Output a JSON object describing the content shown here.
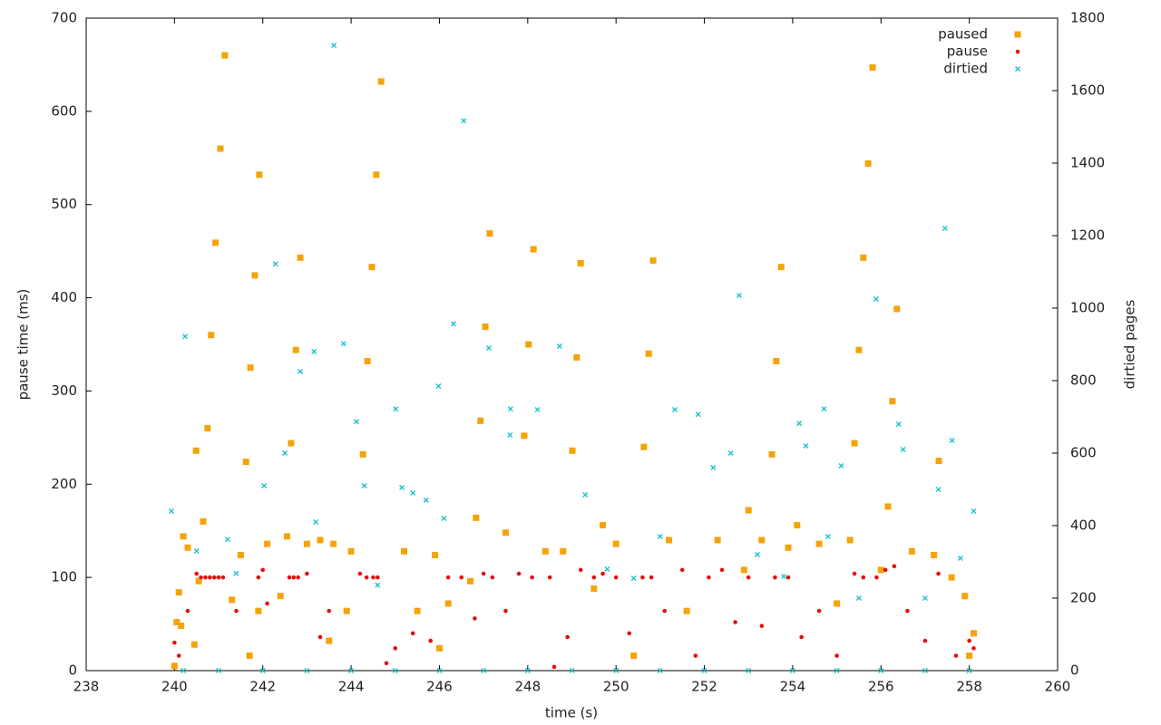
{
  "chart_data": {
    "type": "scatter",
    "xlabel": "time (s)",
    "ylabel": "pause time (ms)",
    "y2label": "dirtied pages",
    "xlim": [
      238,
      260
    ],
    "xticks": [
      238,
      240,
      242,
      244,
      246,
      248,
      250,
      252,
      254,
      256,
      258,
      260
    ],
    "ylim": [
      0,
      700
    ],
    "yticks": [
      0,
      100,
      200,
      300,
      400,
      500,
      600,
      700
    ],
    "y2lim": [
      0,
      1800
    ],
    "y2ticks": [
      0,
      200,
      400,
      600,
      800,
      1000,
      1200,
      1400,
      1600,
      1800
    ],
    "legend": "upper right",
    "series": [
      {
        "name": "paused",
        "color": "#f5a30a",
        "marker": "square",
        "x": [
          241.14,
          241.04,
          240.93,
          240.83,
          240.75,
          240.65,
          240.49,
          241.92,
          241.82,
          241.72,
          241.62,
          242.85,
          242.75,
          242.64,
          244.68,
          244.57,
          244.47,
          244.37,
          244.27,
          247.14,
          247.04,
          246.93,
          246.83,
          248.13,
          248.02,
          247.92,
          249.2,
          249.11,
          249.01,
          250.84,
          250.74,
          250.63,
          253.74,
          253.63,
          253.53,
          255.81,
          255.71,
          255.6,
          255.5,
          255.4,
          256.36,
          256.26,
          256.16,
          257.31,
          240.0,
          240.05,
          240.1,
          240.15,
          240.2,
          240.3,
          240.45,
          240.55,
          241.3,
          241.5,
          241.9,
          242.1,
          242.4,
          242.55,
          243.0,
          243.3,
          243.6,
          243.9,
          244.0,
          245.2,
          245.5,
          245.9,
          246.2,
          246.7,
          247.5,
          248.4,
          248.8,
          249.5,
          249.7,
          250.0,
          251.2,
          251.6,
          252.3,
          252.9,
          253.0,
          253.3,
          253.9,
          254.1,
          254.6,
          255.0,
          255.3,
          256.7,
          257.2,
          257.6,
          257.9,
          258.1,
          258.0,
          256.0,
          250.4,
          246.0,
          243.5,
          241.7
        ],
        "values": [
          660,
          560,
          459,
          360,
          260,
          160,
          236,
          532,
          424,
          325,
          224,
          443,
          344,
          244,
          632,
          532,
          433,
          332,
          232,
          469,
          369,
          268,
          164,
          452,
          350,
          252,
          437,
          336,
          236,
          440,
          340,
          240,
          433,
          332,
          232,
          647,
          544,
          443,
          344,
          244,
          388,
          289,
          176,
          225,
          5,
          52,
          84,
          48,
          144,
          132,
          28,
          96,
          76,
          124,
          64,
          136,
          80,
          144,
          136,
          140,
          136,
          64,
          128,
          128,
          64,
          124,
          72,
          96,
          148,
          128,
          128,
          88,
          156,
          136,
          140,
          64,
          140,
          108,
          172,
          140,
          132,
          156,
          136,
          72,
          140,
          128,
          124,
          100,
          80,
          40,
          16,
          108,
          16,
          24,
          32,
          16
        ]
      },
      {
        "name": "pause",
        "color": "#e41010",
        "marker": "circle",
        "x": [
          240.0,
          240.1,
          240.3,
          240.5,
          240.6,
          240.7,
          240.8,
          240.9,
          241.0,
          241.1,
          241.4,
          241.9,
          242.0,
          242.1,
          242.6,
          242.7,
          242.8,
          243.0,
          243.3,
          243.5,
          244.2,
          244.35,
          244.5,
          244.6,
          245.0,
          245.4,
          245.8,
          246.2,
          246.5,
          246.8,
          247.0,
          247.2,
          247.5,
          247.8,
          248.1,
          248.5,
          248.9,
          249.2,
          249.5,
          249.7,
          250.0,
          250.3,
          250.6,
          250.8,
          251.1,
          251.5,
          251.8,
          252.1,
          252.4,
          252.7,
          253.0,
          253.3,
          253.6,
          253.9,
          254.2,
          254.6,
          255.0,
          255.4,
          255.6,
          255.9,
          256.1,
          256.3,
          256.6,
          257.0,
          257.3,
          257.7,
          258.0,
          258.1,
          244.8,
          248.6
        ],
        "values": [
          30,
          16,
          64,
          104,
          100,
          100,
          100,
          100,
          100,
          100,
          64,
          100,
          108,
          72,
          100,
          100,
          100,
          104,
          36,
          64,
          104,
          100,
          100,
          100,
          24,
          40,
          32,
          100,
          100,
          56,
          104,
          100,
          64,
          104,
          100,
          100,
          36,
          108,
          100,
          104,
          100,
          40,
          100,
          100,
          64,
          108,
          16,
          100,
          108,
          52,
          100,
          48,
          100,
          100,
          36,
          64,
          16,
          104,
          100,
          100,
          108,
          112,
          64,
          32,
          104,
          16,
          32,
          24,
          8,
          4
        ]
      },
      {
        "name": "dirtied",
        "color": "#1cc4cc",
        "marker": "cross",
        "axis": "y2",
        "x": [
          243.61,
          240.24,
          242.29,
          246.55,
          257.45,
          252.79,
          255.89,
          246.32,
          242.85,
          243.16,
          243.83,
          244.12,
          245.01,
          245.98,
          247.12,
          247.61,
          248.72,
          251.33,
          251.86,
          254.15,
          254.71,
          256.4,
          257.61,
          239.93,
          248.22,
          242.03,
          245.15,
          240.5,
          241.2,
          241.4,
          242.5,
          243.2,
          244.3,
          244.6,
          245.4,
          245.7,
          246.1,
          247.6,
          249.3,
          249.8,
          250.4,
          251.0,
          252.2,
          252.6,
          253.2,
          253.8,
          254.3,
          254.8,
          255.1,
          255.5,
          256.5,
          257.0,
          257.3,
          257.8,
          258.1,
          240.2,
          241.0,
          242.0,
          243.0,
          244.0,
          245.0,
          246.0,
          247.0,
          248.0,
          249.0,
          250.0,
          251.0,
          252.0,
          253.0,
          254.0,
          255.0,
          256.0,
          257.0,
          258.0
        ],
        "values": [
          1725,
          922,
          1122,
          1517,
          1220,
          1035,
          1025,
          957,
          825,
          880,
          902,
          687,
          722,
          785,
          890,
          722,
          895,
          720,
          707,
          682,
          722,
          680,
          635,
          440,
          720,
          510,
          505,
          330,
          362,
          268,
          600,
          410,
          510,
          236,
          490,
          470,
          420,
          650,
          485,
          280,
          255,
          370,
          560,
          600,
          320,
          260,
          620,
          370,
          565,
          200,
          610,
          200,
          500,
          310,
          440,
          0,
          0,
          0,
          0,
          0,
          0,
          0,
          0,
          0,
          0,
          0,
          0,
          0,
          0,
          0,
          0,
          0,
          0,
          0
        ]
      }
    ]
  }
}
